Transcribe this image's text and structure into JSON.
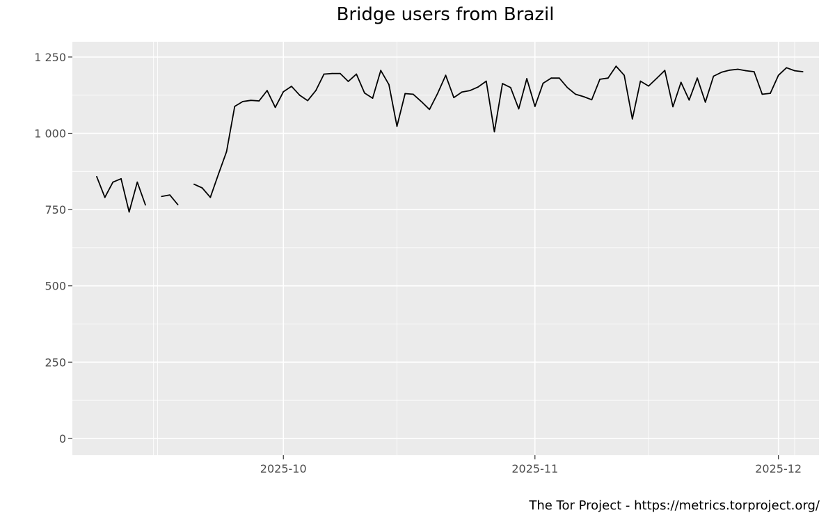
{
  "chart_data": {
    "type": "line",
    "title": "Bridge users from Brazil",
    "caption": "The Tor Project - https://metrics.torproject.org/",
    "xlabel": "",
    "ylabel": "",
    "x_start": "2025-09-08",
    "x_range": [
      "2025-09-05",
      "2025-12-06"
    ],
    "x_major_ticks": [
      {
        "date": "2025-10-01",
        "label": "2025-10"
      },
      {
        "date": "2025-11-01",
        "label": "2025-11"
      },
      {
        "date": "2025-12-01",
        "label": "2025-12"
      }
    ],
    "x_minor_ticks": [
      "2025-09-15",
      "2025-10-15",
      "2025-11-15"
    ],
    "ylim": [
      -55,
      1300
    ],
    "y_ticks": [
      {
        "value": 0,
        "label": "0"
      },
      {
        "value": 250,
        "label": "250"
      },
      {
        "value": 500,
        "label": "500"
      },
      {
        "value": 750,
        "label": "750"
      },
      {
        "value": 1000,
        "label": "1 000"
      },
      {
        "value": 1250,
        "label": "1 250"
      }
    ],
    "series": [
      {
        "values": [
          858,
          790,
          840,
          851,
          742,
          840,
          765,
          null,
          793,
          798,
          766,
          null,
          833,
          821,
          790,
          866,
          940,
          1088,
          1104,
          1108,
          1106,
          1140,
          1085,
          1136,
          1154,
          1125,
          1107,
          1140,
          1194,
          1196,
          1196,
          1170,
          1194,
          1132,
          1115,
          1206,
          1160,
          1023,
          1130,
          1128,
          1104,
          1078,
          1130,
          1190,
          1117,
          1135,
          1140,
          1152,
          1171,
          1005,
          1163,
          1150,
          1080,
          1179,
          1088,
          1164,
          1181,
          1181,
          1150,
          1128,
          1120,
          1110,
          1177,
          1181,
          1220,
          1190,
          1047,
          1171,
          1155,
          1180,
          1206,
          1087,
          1167,
          1109,
          1181,
          1102,
          1187,
          1200,
          1207,
          1210,
          1205,
          1202,
          1128,
          1131,
          1190,
          1215,
          1205,
          1202
        ]
      }
    ],
    "grid": true,
    "panel_background": "#ebebeb",
    "grid_color": "#ffffff",
    "line_color": "#000000"
  }
}
